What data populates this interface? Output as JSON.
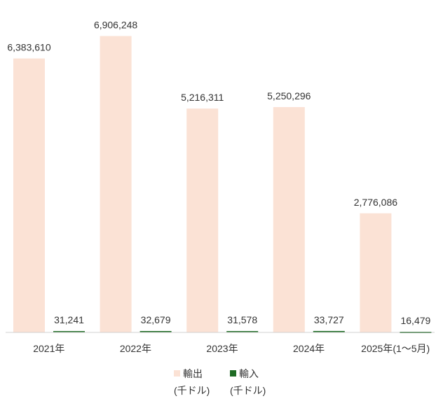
{
  "chart_data": {
    "type": "bar",
    "categories": [
      "2021年",
      "2022年",
      "2023年",
      "2024年",
      "2025年(1〜5月)"
    ],
    "series": [
      {
        "name": "輸出",
        "unit": "(千ドル)",
        "color": "#fbe2d5",
        "values": [
          6383610,
          6906248,
          5216311,
          5250296,
          2776086
        ],
        "labels": [
          "6,383,610",
          "6,906,248",
          "5,216,311",
          "5,250,296",
          "2,776,086"
        ]
      },
      {
        "name": "輸入",
        "unit": "(千ドル)",
        "color": "#1e6b24",
        "values": [
          31241,
          32679,
          31578,
          33727,
          16479
        ],
        "labels": [
          "31,241",
          "32,679",
          "31,578",
          "33,727",
          "16,479"
        ]
      }
    ],
    "ylim": [
      0,
      7550000
    ],
    "grid": false,
    "legend_position": "bottom"
  }
}
